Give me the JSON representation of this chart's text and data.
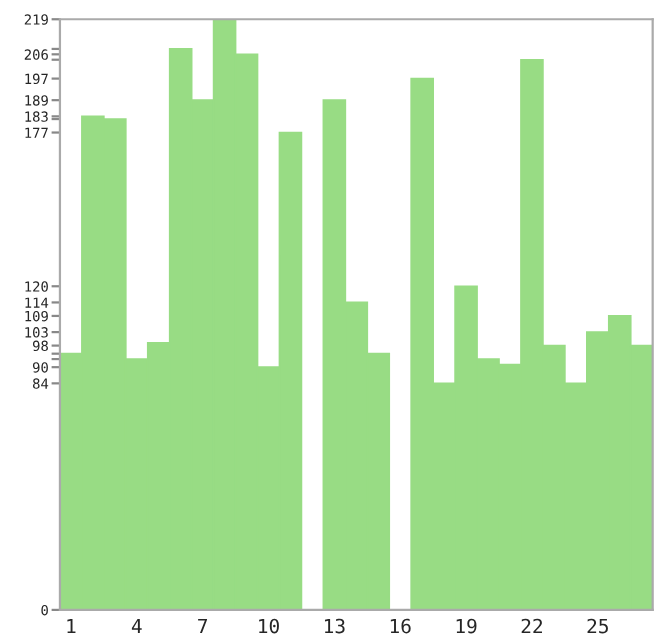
{
  "chart_data": {
    "type": "bar",
    "categories": [
      "1",
      null,
      null,
      "4",
      null,
      null,
      "7",
      null,
      null,
      "10",
      null,
      null,
      "13",
      null,
      null,
      "16",
      null,
      null,
      "19",
      null,
      null,
      "22",
      null,
      null,
      "25",
      null,
      null
    ],
    "values": [
      95,
      183,
      182,
      93,
      99,
      208,
      189,
      219,
      206,
      90,
      177,
      0,
      189,
      114,
      95,
      0,
      197,
      84,
      120,
      93,
      91,
      204,
      98,
      84,
      103,
      109,
      98
    ],
    "color": "#98dc84",
    "ylim": [
      0,
      219
    ],
    "yticks": [
      0,
      84,
      90,
      {
        "value": 93,
        "label": null
      },
      {
        "value": 95,
        "label": null
      },
      98,
      103,
      109,
      114,
      120,
      177,
      {
        "value": 182,
        "label": null
      },
      183,
      189,
      197,
      {
        "value": 204,
        "label": null
      },
      206,
      {
        "value": 208,
        "label": null
      },
      219
    ],
    "grid": false
  }
}
